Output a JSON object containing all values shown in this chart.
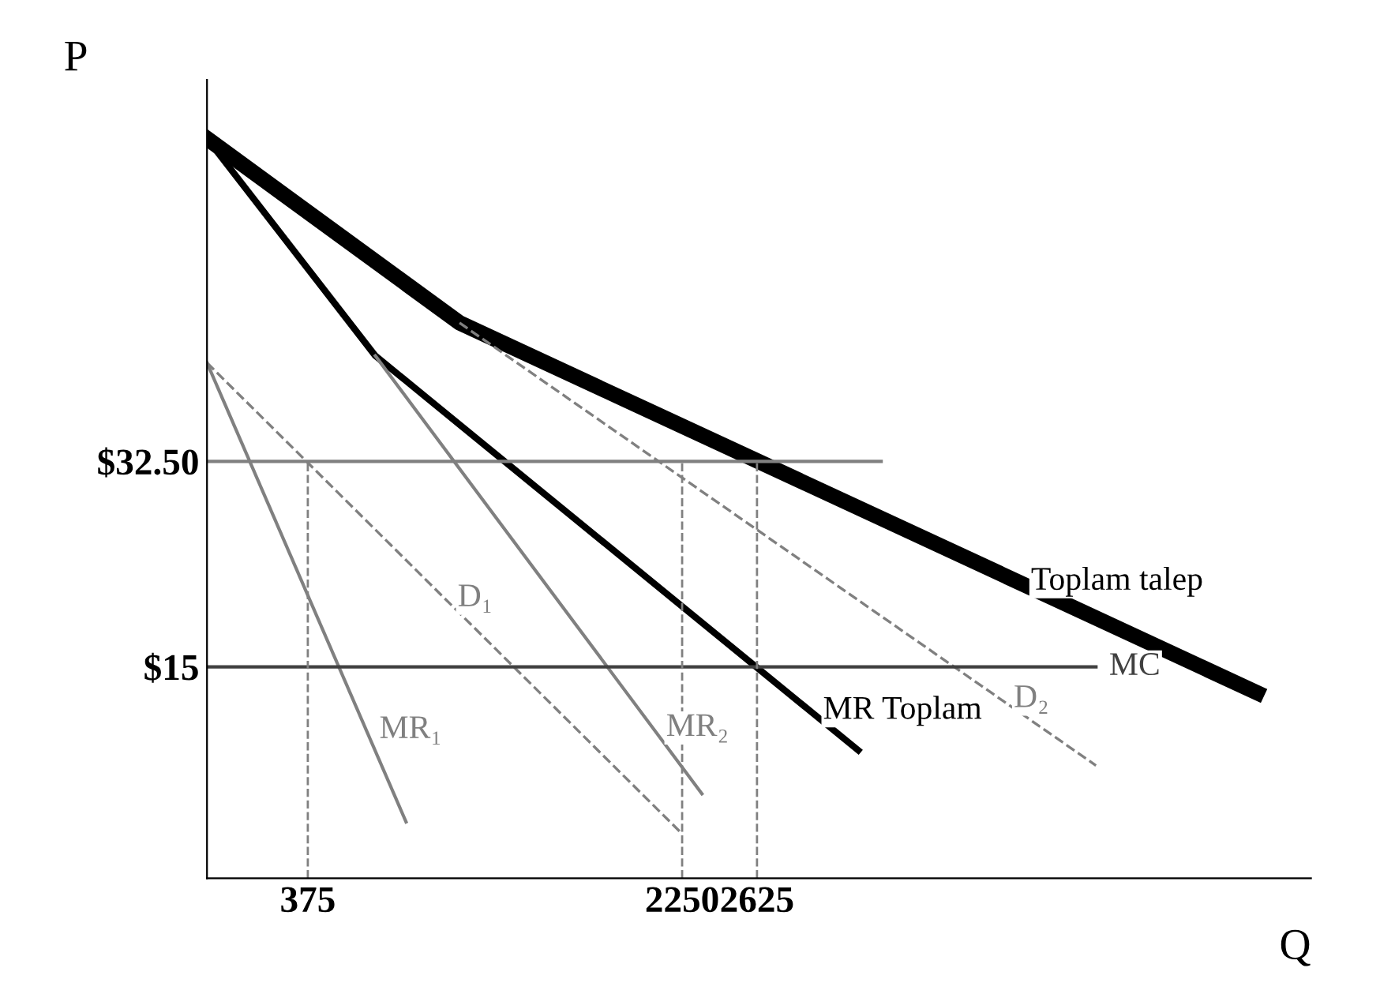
{
  "chart_data": {
    "type": "line",
    "xlabel": "Q",
    "ylabel": "P",
    "xlim": [
      -130,
      5400
    ],
    "ylim": [
      -3,
      65
    ],
    "xticks": [
      375,
      2250,
      2625
    ],
    "yticks": [
      {
        "value": 15,
        "label": "$15"
      },
      {
        "value": 32.5,
        "label": "$32.50"
      }
    ],
    "grid": false,
    "legend": false,
    "marker": "none",
    "series": [
      {
        "name": "Toplam talep",
        "color": "#000000",
        "line_style": "solid",
        "x": [
          -130,
          1135,
          5130
        ],
        "values": [
          60.0,
          44.3,
          12.8
        ]
      },
      {
        "name": "MR Toplam",
        "color": "#000000",
        "line_style": "solid",
        "x": [
          -130,
          713,
          3132
        ],
        "values": [
          60.0,
          41.5,
          7.9
        ]
      },
      {
        "name": "D₁",
        "color": "#808080",
        "line_style": "dashed",
        "x": [
          -130,
          2249
        ],
        "values": [
          40.9,
          0.8
        ]
      },
      {
        "name": "MR₁",
        "color": "#808080",
        "line_style": "solid",
        "x": [
          -130,
          867
        ],
        "values": [
          40.9,
          1.8
        ]
      },
      {
        "name": "D₂",
        "color": "#808080",
        "line_style": "dashed",
        "x": [
          1135,
          4323
        ],
        "values": [
          44.3,
          6.6
        ]
      },
      {
        "name": "MR₂",
        "color": "#808080",
        "line_style": "solid",
        "x": [
          713,
          2349
        ],
        "values": [
          41.5,
          4.2
        ]
      },
      {
        "name": "MC",
        "color": "#404040",
        "line_style": "solid",
        "x": [
          -130,
          4323
        ],
        "values": [
          15,
          15
        ]
      },
      {
        "color": "#808080",
        "line_style": "solid",
        "x": [
          -130,
          3247
        ],
        "values": [
          32.5,
          32.5
        ]
      },
      {
        "color": "#808080",
        "line_style": "dashed",
        "x": [
          375,
          375
        ],
        "values": [
          -3,
          32.5
        ]
      },
      {
        "color": "#808080",
        "line_style": "dashed",
        "x": [
          2250,
          2250
        ],
        "values": [
          -3,
          32.5
        ]
      },
      {
        "color": "#808080",
        "line_style": "dashed",
        "x": [
          2625,
          2625
        ],
        "values": [
          -3,
          32.5
        ]
      }
    ]
  }
}
